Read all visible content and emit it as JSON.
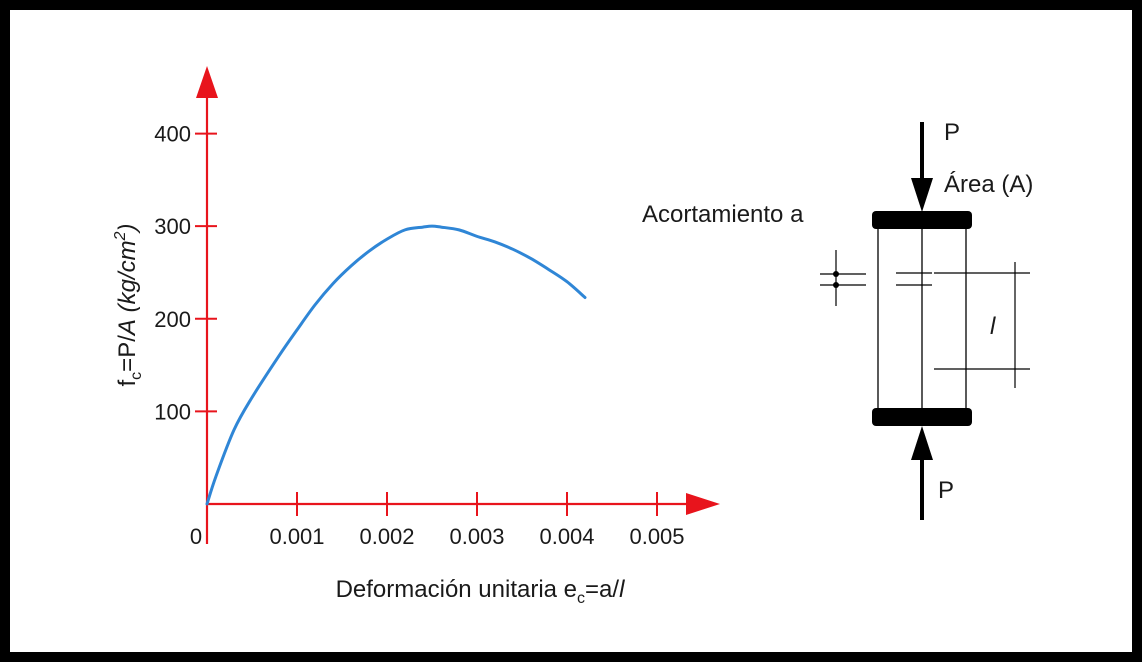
{
  "chart_data": {
    "type": "line",
    "xlabel": {
      "main": "Deformación unitaria e",
      "sub": "c",
      "tail": "=a/",
      "italic": "l"
    },
    "ylabel": {
      "pre": "f",
      "sub": "c",
      "mid": "=P/",
      "italic_a": "A",
      "space": " ",
      "unit": "(kg/cm",
      "sup": "2",
      "close": ")"
    },
    "x_ticks": [
      0.001,
      0.002,
      0.003,
      0.004,
      0.005
    ],
    "x_tick_labels": [
      "0.001",
      "0.002",
      "0.003",
      "0.004",
      "0.005"
    ],
    "y_ticks": [
      100,
      200,
      300,
      400
    ],
    "y_tick_labels": [
      "100",
      "200",
      "300",
      "400"
    ],
    "origin_label": "0",
    "xlim": [
      0,
      0.0055
    ],
    "ylim": [
      0,
      460
    ],
    "grid": false,
    "axis_color": "#e8141c",
    "series": [
      {
        "color": "#2f86d6",
        "x": [
          0,
          0.0001,
          0.0003,
          0.0005,
          0.0008,
          0.001,
          0.0012,
          0.0014,
          0.0016,
          0.0018,
          0.002,
          0.0022,
          0.0024,
          0.0025,
          0.0026,
          0.0028,
          0.003,
          0.0032,
          0.0034,
          0.0036,
          0.0038,
          0.004,
          0.0042
        ],
        "y": [
          0,
          30,
          80,
          115,
          160,
          188,
          215,
          238,
          257,
          273,
          286,
          296,
          299,
          300,
          299,
          296,
          289,
          283,
          275,
          265,
          253,
          240,
          223
        ]
      }
    ]
  },
  "diagram": {
    "load_top": "P",
    "load_bottom": "P",
    "area_label": "Área (A)",
    "shortening_label": "Acortamiento a",
    "length_label": "l",
    "colors": {
      "ink": "#000000"
    }
  }
}
